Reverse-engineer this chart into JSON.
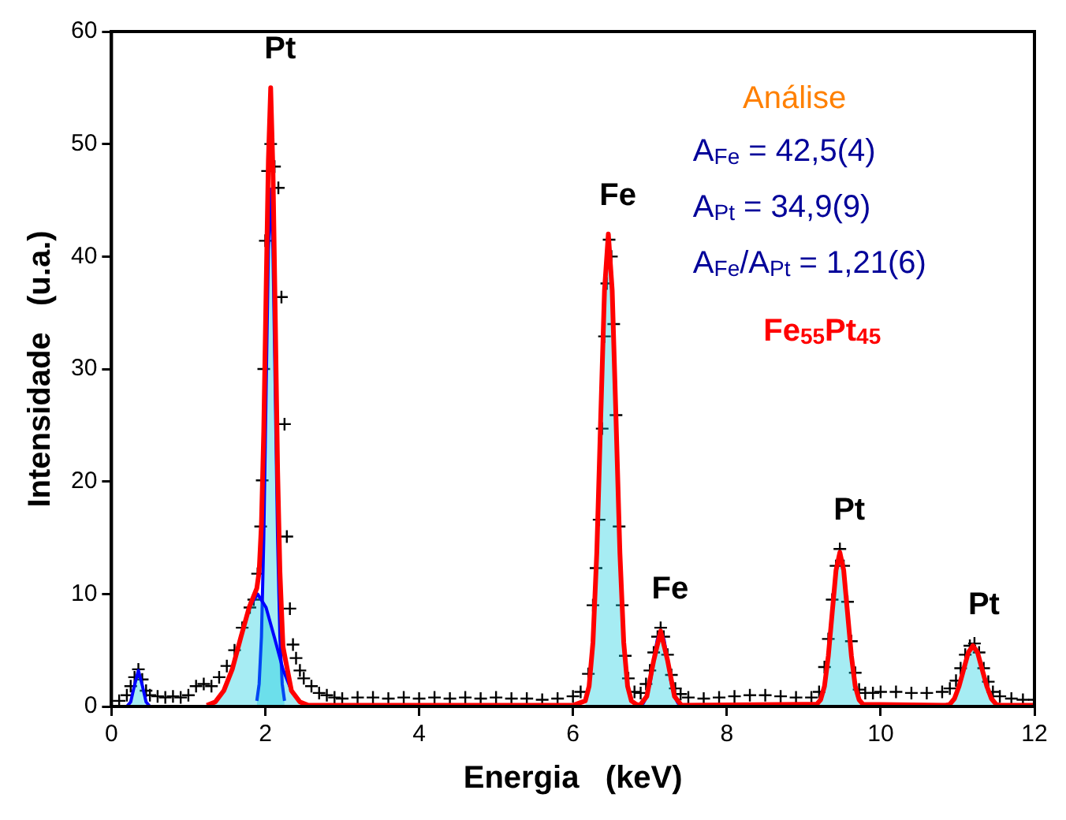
{
  "chart_data": {
    "type": "line",
    "xlabel": "Energia   (keV)",
    "ylabel": "Intensidade   (u.a.)",
    "xlim": [
      0,
      12
    ],
    "ylim": [
      0,
      60
    ],
    "xticks": [
      0,
      2,
      4,
      6,
      8,
      10,
      12
    ],
    "yticks": [
      0,
      10,
      20,
      30,
      40,
      50,
      60
    ],
    "legend": false,
    "series": [
      {
        "type": "scatter",
        "marker": "cross",
        "color": "#000000",
        "x": [
          0.1,
          0.2,
          0.25,
          0.3,
          0.35,
          0.4,
          0.45,
          0.5,
          0.6,
          0.7,
          0.8,
          0.9,
          1.0,
          1.1,
          1.2,
          1.3,
          1.4,
          1.5,
          1.6,
          1.7,
          1.8,
          1.85,
          1.9,
          1.94,
          1.96,
          1.98,
          2.0,
          2.03,
          2.07,
          2.12,
          2.17,
          2.21,
          2.25,
          2.28,
          2.32,
          2.36,
          2.4,
          2.45,
          2.5,
          2.6,
          2.7,
          2.8,
          2.9,
          3.0,
          3.2,
          3.4,
          3.6,
          3.8,
          4.0,
          4.2,
          4.4,
          4.6,
          4.8,
          5.0,
          5.2,
          5.4,
          5.6,
          5.8,
          6.0,
          6.1,
          6.2,
          6.26,
          6.3,
          6.34,
          6.38,
          6.41,
          6.44,
          6.47,
          6.5,
          6.53,
          6.56,
          6.6,
          6.64,
          6.68,
          6.72,
          6.8,
          6.88,
          6.95,
          7.0,
          7.05,
          7.1,
          7.14,
          7.18,
          7.23,
          7.28,
          7.33,
          7.4,
          7.5,
          7.7,
          7.9,
          8.1,
          8.3,
          8.5,
          8.7,
          8.9,
          9.1,
          9.2,
          9.27,
          9.32,
          9.37,
          9.42,
          9.47,
          9.52,
          9.57,
          9.62,
          9.67,
          9.72,
          9.8,
          9.9,
          10.0,
          10.2,
          10.4,
          10.6,
          10.8,
          10.9,
          10.98,
          11.04,
          11.1,
          11.16,
          11.22,
          11.28,
          11.34,
          11.4,
          11.46,
          11.55,
          11.7,
          11.85,
          12.0
        ],
        "values": [
          0.5,
          1.0,
          1.8,
          2.6,
          3.3,
          2.4,
          1.4,
          1.0,
          0.9,
          0.8,
          0.9,
          0.8,
          1.0,
          1.8,
          2.0,
          1.8,
          2.6,
          3.6,
          5.0,
          7.0,
          8.8,
          9.5,
          11.8,
          16,
          20.1,
          30,
          41.4,
          47.6,
          50,
          48,
          46.1,
          36.4,
          25.1,
          15.1,
          8.7,
          5.5,
          4.3,
          3.2,
          2.5,
          1.8,
          1.2,
          1.0,
          0.8,
          0.7,
          0.8,
          0.8,
          0.7,
          0.8,
          0.7,
          0.8,
          0.7,
          0.8,
          0.7,
          0.8,
          0.7,
          0.7,
          0.6,
          0.7,
          0.9,
          1.3,
          2.9,
          9.0,
          12.3,
          16.6,
          24.7,
          32.9,
          37.6,
          41.5,
          40,
          34,
          25.9,
          16,
          9,
          4.5,
          2.5,
          1.3,
          1.2,
          2.0,
          3.2,
          4.8,
          6.2,
          7.0,
          6.2,
          4.6,
          2.8,
          1.6,
          1.1,
          0.8,
          0.7,
          0.8,
          0.9,
          1.0,
          1.0,
          0.9,
          0.8,
          0.8,
          1.3,
          3.5,
          6.0,
          9.5,
          12.5,
          14.0,
          12.5,
          9.3,
          5.8,
          3.0,
          1.5,
          1.2,
          1.2,
          1.3,
          1.3,
          1.2,
          1.2,
          1.3,
          1.6,
          2.3,
          3.4,
          4.6,
          5.4,
          5.6,
          4.8,
          3.4,
          2.2,
          1.3,
          0.9,
          0.7,
          0.6,
          0.6
        ]
      },
      {
        "type": "area",
        "color": "#0000ff",
        "x": [
          1.89,
          1.92,
          1.95,
          1.98,
          2.01,
          2.04,
          2.07,
          2.1,
          2.13,
          2.16,
          2.19,
          2.22,
          2.25
        ],
        "values": [
          0.5,
          2.0,
          6.2,
          14.9,
          27.9,
          40.6,
          46,
          40.6,
          27.9,
          14.9,
          6.2,
          2.0,
          0.5
        ]
      },
      {
        "type": "area",
        "color": "#0000ff",
        "x": [
          0.2,
          0.25,
          0.3,
          0.35,
          0.4,
          0.45,
          0.5,
          0.8,
          1.24,
          1.35,
          1.46,
          1.57,
          1.68,
          1.79,
          1.9,
          2.01,
          2.12,
          2.23,
          2.34,
          2.45,
          2.56,
          4,
          6.16,
          6.21,
          6.26,
          6.31,
          6.36,
          6.41,
          6.46,
          6.51,
          6.56,
          6.61,
          6.66,
          6.71,
          6.76,
          6.8,
          6.87,
          6.915,
          6.96,
          7.005,
          7.05,
          7.095,
          7.14,
          7.185,
          7.23,
          7.275,
          7.32,
          7.365,
          7.41,
          8,
          9.17,
          9.22,
          9.27,
          9.32,
          9.37,
          9.42,
          9.47,
          9.52,
          9.57,
          9.62,
          9.67,
          9.72,
          9.77,
          10.5,
          10.84,
          10.9,
          10.96,
          11.02,
          11.08,
          11.14,
          11.2,
          11.26,
          11.32,
          11.38,
          11.44,
          11.5,
          11.56
        ],
        "values": [
          0.0,
          0.4,
          1.9,
          3.2,
          1.9,
          0.4,
          0.0,
          null,
          0.1,
          0.4,
          1.4,
          3.3,
          6.1,
          8.8,
          10,
          8.8,
          6.1,
          3.3,
          1.4,
          0.4,
          0.1,
          null,
          0.5,
          1.8,
          5.7,
          13.7,
          25.5,
          37.0,
          42,
          37.0,
          25.5,
          13.7,
          5.7,
          1.8,
          0.5,
          null,
          0.1,
          0.3,
          0.9,
          2.2,
          4.1,
          5.9,
          6.7,
          5.9,
          4.1,
          2.2,
          0.9,
          0.3,
          0.1,
          null,
          0.2,
          0.6,
          1.8,
          4.5,
          8.3,
          12.1,
          13.7,
          12.1,
          8.3,
          4.5,
          1.8,
          0.6,
          0.2,
          null,
          0.1,
          0.2,
          0.7,
          1.8,
          3.3,
          4.8,
          5.4,
          4.8,
          3.3,
          1.8,
          0.7,
          0.2,
          0.1
        ]
      },
      {
        "type": "line",
        "color": "#ff0000",
        "x": [
          1.24,
          1.35,
          1.46,
          1.57,
          1.68,
          1.79,
          1.89,
          1.92,
          1.95,
          1.98,
          2.01,
          2.04,
          2.07,
          2.1,
          2.13,
          2.16,
          2.19,
          2.23,
          2.34,
          2.45,
          2.56,
          3.0,
          6.0,
          6.16,
          6.21,
          6.26,
          6.31,
          6.36,
          6.41,
          6.46,
          6.51,
          6.56,
          6.61,
          6.66,
          6.71,
          6.76,
          6.82,
          6.87,
          6.96,
          7.05,
          7.14,
          7.23,
          7.32,
          7.41,
          9.17,
          9.22,
          9.27,
          9.32,
          9.37,
          9.42,
          9.47,
          9.52,
          9.57,
          9.62,
          9.67,
          9.72,
          9.77,
          10.84,
          10.9,
          10.96,
          11.02,
          11.08,
          11.14,
          11.2,
          11.26,
          11.32,
          11.38,
          11.44,
          11.5,
          11.56,
          12.0
        ],
        "values": [
          0.1,
          0.4,
          1.4,
          3.3,
          6.1,
          8.8,
          10.5,
          12.0,
          16.2,
          24.5,
          36.7,
          48.5,
          55,
          47.5,
          34.5,
          21,
          12,
          5.3,
          1.4,
          0.4,
          0.1,
          0.1,
          0.1,
          0.5,
          1.8,
          5.7,
          13.7,
          25.5,
          37.0,
          42,
          37.0,
          25.5,
          13.7,
          5.7,
          1.8,
          0.5,
          0.2,
          0.1,
          0.9,
          4.1,
          6.7,
          4.1,
          0.9,
          0.1,
          0.2,
          0.6,
          1.8,
          4.5,
          8.3,
          12.1,
          13.7,
          12.1,
          8.3,
          4.5,
          1.8,
          0.6,
          0.2,
          0.1,
          0.2,
          0.7,
          1.8,
          3.3,
          4.8,
          5.4,
          4.8,
          3.3,
          1.8,
          0.7,
          0.2,
          0.1,
          0.1
        ]
      }
    ],
    "annotations": [
      {
        "text": "Pt",
        "x": 2.07,
        "y": 55
      },
      {
        "text": "Fe",
        "x": 6.46,
        "y": 42
      },
      {
        "text": "Fe",
        "x": 7.14,
        "y": 7.0
      },
      {
        "text": "Pt",
        "x": 9.47,
        "y": 14.0
      },
      {
        "text": "Pt",
        "x": 11.22,
        "y": 5.6
      },
      "Análise",
      "A$_{Fe}$ = 42,5(4)",
      "A$_{Pt}$ = 34,9(9)",
      "A$_{Fe}$/A$_{Pt}$ = 1,21(6)",
      "Fe$_{55}$Pt$_{45}$"
    ]
  }
}
